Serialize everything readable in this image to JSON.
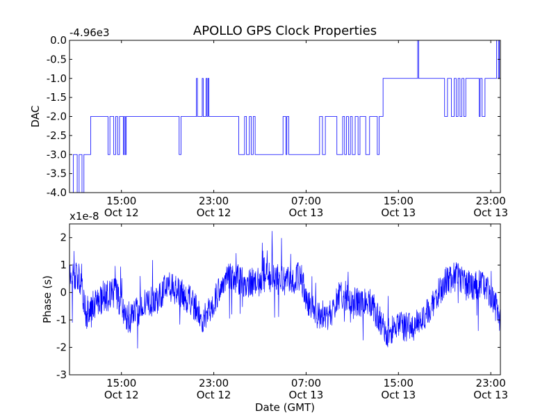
{
  "figure": {
    "title": "APOLLO GPS Clock Properties",
    "xlabel": "Date (GMT)"
  },
  "chart_data": [
    {
      "type": "line",
      "title": "APOLLO GPS Clock Properties",
      "ylabel": "DAC",
      "offset_label": "-4.96e3",
      "x_kind": "time",
      "xlim": [
        "2013-10-12T10:30",
        "2013-10-13T23:50"
      ],
      "ylim": [
        -4.0,
        0.0
      ],
      "yticks": [
        0.0,
        -0.5,
        -1.0,
        -1.5,
        -2.0,
        -2.5,
        -3.0,
        -3.5,
        -4.0
      ],
      "ytick_labels": [
        "0.0",
        "-0.5",
        "-1.0",
        "-1.5",
        "-2.0",
        "-2.5",
        "-3.0",
        "-3.5",
        "-4.0"
      ],
      "xticks": [
        "2013-10-12T15:00",
        "2013-10-12T23:00",
        "2013-10-13T07:00",
        "2013-10-13T15:00",
        "2013-10-13T23:00"
      ],
      "xtick_labels": [
        [
          "15:00",
          "Oct 12"
        ],
        [
          "23:00",
          "Oct 12"
        ],
        [
          "07:00",
          "Oct 13"
        ],
        [
          "15:00",
          "Oct 13"
        ],
        [
          "23:00",
          "Oct 13"
        ]
      ],
      "grid": false,
      "series": [
        {
          "color": "#0000ff",
          "steps": [
            [
              "2013-10-12T10:30",
              -4.0
            ],
            [
              "2013-10-12T10:50",
              -3.0
            ],
            [
              "2013-10-12T11:10",
              -4.0
            ],
            [
              "2013-10-12T11:20",
              -3.0
            ],
            [
              "2013-10-12T11:35",
              -4.0
            ],
            [
              "2013-10-12T11:45",
              -3.0
            ],
            [
              "2013-10-12T12:20",
              -2.0
            ],
            [
              "2013-10-12T13:50",
              -3.0
            ],
            [
              "2013-10-12T14:00",
              -2.0
            ],
            [
              "2013-10-12T14:20",
              -3.0
            ],
            [
              "2013-10-12T14:30",
              -2.0
            ],
            [
              "2013-10-12T14:40",
              -3.0
            ],
            [
              "2013-10-12T14:50",
              -2.0
            ],
            [
              "2013-10-12T15:10",
              -3.0
            ],
            [
              "2013-10-12T15:15",
              -2.0
            ],
            [
              "2013-10-12T15:20",
              -3.0
            ],
            [
              "2013-10-12T15:25",
              -2.0
            ],
            [
              "2013-10-12T20:00",
              -3.0
            ],
            [
              "2013-10-12T20:10",
              -2.0
            ],
            [
              "2013-10-12T21:30",
              -1.0
            ],
            [
              "2013-10-12T21:35",
              -2.0
            ],
            [
              "2013-10-12T22:00",
              -1.0
            ],
            [
              "2013-10-12T22:05",
              -2.0
            ],
            [
              "2013-10-12T22:20",
              -1.0
            ],
            [
              "2013-10-12T22:25",
              -2.0
            ],
            [
              "2013-10-12T22:30",
              -1.0
            ],
            [
              "2013-10-12T22:35",
              -2.0
            ],
            [
              "2013-10-13T01:10",
              -3.0
            ],
            [
              "2013-10-13T01:40",
              -2.0
            ],
            [
              "2013-10-13T01:50",
              -3.0
            ],
            [
              "2013-10-13T02:05",
              -2.0
            ],
            [
              "2013-10-13T02:15",
              -3.0
            ],
            [
              "2013-10-13T02:25",
              -2.0
            ],
            [
              "2013-10-13T02:35",
              -3.0
            ],
            [
              "2013-10-13T05:00",
              -2.0
            ],
            [
              "2013-10-13T05:15",
              -3.0
            ],
            [
              "2013-10-13T05:20",
              -2.0
            ],
            [
              "2013-10-13T05:30",
              -3.0
            ],
            [
              "2013-10-13T08:10",
              -2.0
            ],
            [
              "2013-10-13T08:25",
              -3.0
            ],
            [
              "2013-10-13T08:40",
              -2.0
            ],
            [
              "2013-10-13T09:40",
              -3.0
            ],
            [
              "2013-10-13T10:10",
              -2.0
            ],
            [
              "2013-10-13T10:20",
              -3.0
            ],
            [
              "2013-10-13T10:30",
              -2.0
            ],
            [
              "2013-10-13T10:40",
              -3.0
            ],
            [
              "2013-10-13T10:50",
              -2.0
            ],
            [
              "2013-10-13T11:00",
              -3.0
            ],
            [
              "2013-10-13T11:15",
              -2.0
            ],
            [
              "2013-10-13T11:30",
              -3.0
            ],
            [
              "2013-10-13T11:40",
              -2.0
            ],
            [
              "2013-10-13T12:10",
              -3.0
            ],
            [
              "2013-10-13T12:30",
              -2.0
            ],
            [
              "2013-10-13T13:10",
              -3.0
            ],
            [
              "2013-10-13T13:20",
              -2.0
            ],
            [
              "2013-10-13T13:40",
              -1.0
            ],
            [
              "2013-10-13T16:40",
              0.0
            ],
            [
              "2013-10-13T16:45",
              -1.0
            ],
            [
              "2013-10-13T19:00",
              -2.0
            ],
            [
              "2013-10-13T19:15",
              -1.0
            ],
            [
              "2013-10-13T19:35",
              -2.0
            ],
            [
              "2013-10-13T19:50",
              -1.0
            ],
            [
              "2013-10-13T20:00",
              -2.0
            ],
            [
              "2013-10-13T20:10",
              -1.0
            ],
            [
              "2013-10-13T20:20",
              -2.0
            ],
            [
              "2013-10-13T20:30",
              -1.0
            ],
            [
              "2013-10-13T20:40",
              -2.0
            ],
            [
              "2013-10-13T20:50",
              -1.0
            ],
            [
              "2013-10-13T22:00",
              -2.0
            ],
            [
              "2013-10-13T22:05",
              -1.0
            ],
            [
              "2013-10-13T22:15",
              -2.0
            ],
            [
              "2013-10-13T22:30",
              -1.0
            ],
            [
              "2013-10-13T23:30",
              0.0
            ],
            [
              "2013-10-13T23:40",
              -1.0
            ],
            [
              "2013-10-13T23:45",
              0.0
            ],
            [
              "2013-10-13T23:50",
              -1.0
            ]
          ]
        }
      ]
    },
    {
      "type": "line",
      "ylabel": "Phase (s)",
      "offset_label": "x1e-8",
      "x_kind": "time",
      "xlim": [
        "2013-10-12T10:30",
        "2013-10-13T23:50"
      ],
      "ylim": [
        -3,
        2.5
      ],
      "yticks": [
        2,
        1,
        0,
        -1,
        -2,
        -3
      ],
      "ytick_labels": [
        "2",
        "1",
        "0",
        "-1",
        "-2",
        "-3"
      ],
      "xticks": [
        "2013-10-12T15:00",
        "2013-10-12T23:00",
        "2013-10-13T07:00",
        "2013-10-13T15:00",
        "2013-10-13T23:00"
      ],
      "xtick_labels": [
        [
          "15:00",
          "Oct 12"
        ],
        [
          "23:00",
          "Oct 12"
        ],
        [
          "07:00",
          "Oct 13"
        ],
        [
          "15:00",
          "Oct 13"
        ],
        [
          "23:00",
          "Oct 13"
        ]
      ],
      "grid": false,
      "series": [
        {
          "color": "#0000ff",
          "trend": [
            [
              "2013-10-12T10:30",
              0.8
            ],
            [
              "2013-10-12T11:00",
              0.6
            ],
            [
              "2013-10-12T11:30",
              0.2
            ],
            [
              "2013-10-12T12:00",
              -0.9
            ],
            [
              "2013-10-12T12:30",
              -0.5
            ],
            [
              "2013-10-12T13:00",
              -0.3
            ],
            [
              "2013-10-12T13:30",
              -0.2
            ],
            [
              "2013-10-12T14:00",
              -0.1
            ],
            [
              "2013-10-12T14:30",
              0.0
            ],
            [
              "2013-10-12T15:00",
              -0.5
            ],
            [
              "2013-10-12T15:30",
              -1.0
            ],
            [
              "2013-10-12T16:00",
              -0.9
            ],
            [
              "2013-10-12T17:00",
              -0.4
            ],
            [
              "2013-10-12T18:00",
              -0.3
            ],
            [
              "2013-10-12T19:00",
              0.3
            ],
            [
              "2013-10-12T20:00",
              0.0
            ],
            [
              "2013-10-12T21:00",
              -0.3
            ],
            [
              "2013-10-12T22:00",
              -1.0
            ],
            [
              "2013-10-12T23:00",
              -0.4
            ],
            [
              "2013-10-13T00:00",
              0.6
            ],
            [
              "2013-10-13T01:00",
              0.5
            ],
            [
              "2013-10-13T02:00",
              0.3
            ],
            [
              "2013-10-13T03:00",
              0.5
            ],
            [
              "2013-10-13T04:00",
              0.6
            ],
            [
              "2013-10-13T05:00",
              0.4
            ],
            [
              "2013-10-13T06:00",
              0.5
            ],
            [
              "2013-10-13T06:30",
              0.6
            ],
            [
              "2013-10-13T07:00",
              -0.2
            ],
            [
              "2013-10-13T08:00",
              -0.8
            ],
            [
              "2013-10-13T09:00",
              -0.9
            ],
            [
              "2013-10-13T09:30",
              -0.5
            ],
            [
              "2013-10-13T10:00",
              0.0
            ],
            [
              "2013-10-13T11:00",
              -0.3
            ],
            [
              "2013-10-13T12:00",
              -0.4
            ],
            [
              "2013-10-13T12:30",
              -0.3
            ],
            [
              "2013-10-13T13:00",
              -0.7
            ],
            [
              "2013-10-13T14:00",
              -1.5
            ],
            [
              "2013-10-13T15:00",
              -1.2
            ],
            [
              "2013-10-13T16:00",
              -1.3
            ],
            [
              "2013-10-13T17:00",
              -1.0
            ],
            [
              "2013-10-13T18:00",
              -0.4
            ],
            [
              "2013-10-13T19:00",
              0.4
            ],
            [
              "2013-10-13T20:00",
              0.6
            ],
            [
              "2013-10-13T21:00",
              0.2
            ],
            [
              "2013-10-13T22:00",
              0.3
            ],
            [
              "2013-10-13T23:00",
              0.0
            ],
            [
              "2013-10-13T23:50",
              -1.0
            ]
          ]
        }
      ]
    }
  ]
}
